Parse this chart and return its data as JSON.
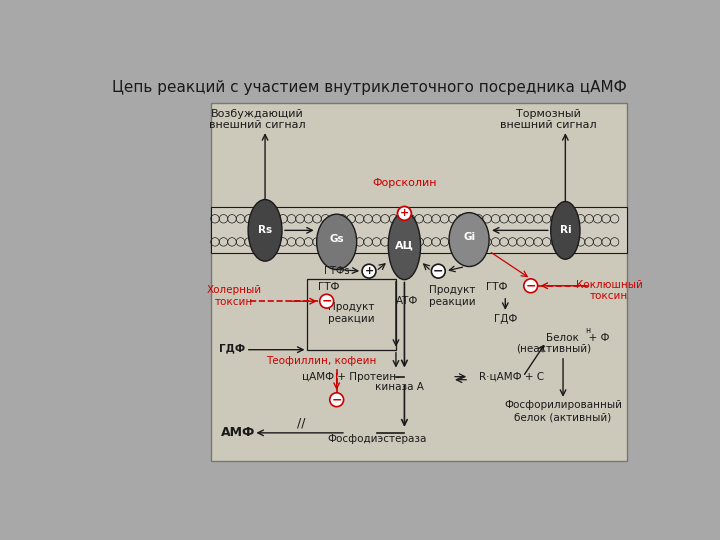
{
  "title": "Цепь реакций с участием внутриклеточного посредника цАМФ",
  "bg_color": "#ccc8ba",
  "outer_bg": "#a8a8a8",
  "black": "#1a1a1a",
  "red": "#cc0000",
  "labels": {
    "excit_signal": "Возбуждающий\nвнешний сигнал",
    "inhib_signal": "Тормозный\nвнешний сигнал",
    "forskolin": "Форсколин",
    "cholera": "Холерный\nтоксин",
    "pertussis": "Коклюшный\nтоксин",
    "gtf1": "ГТФ",
    "gtf2": "ГТФ",
    "atf": "АТФ",
    "product1": "Продукт\nреакции",
    "product2": "Продукт\nреакции",
    "gdf1": "ГДФ",
    "gdf2": "ГДФ",
    "theo": "Теофиллин, кофеин",
    "camp_left": "цАМФ + Протеин-",
    "camp_right": "R·цАМФ + С",
    "kinase": "киназа А",
    "protein": "Белок   + Ф",
    "fn": "н",
    "inactive": "(неактивный)",
    "phosph_prot": "Фосфорилированный\nбелок (активный)",
    "amf": "АМФ",
    "phosphodiesterase": "Фосфодиэстераза",
    "Rs": "Rs",
    "Ri": "Ri",
    "Gs": "Gs",
    "Gi": "Gi",
    "GTFs": "ГТФs",
    "AC": "АЦ"
  }
}
